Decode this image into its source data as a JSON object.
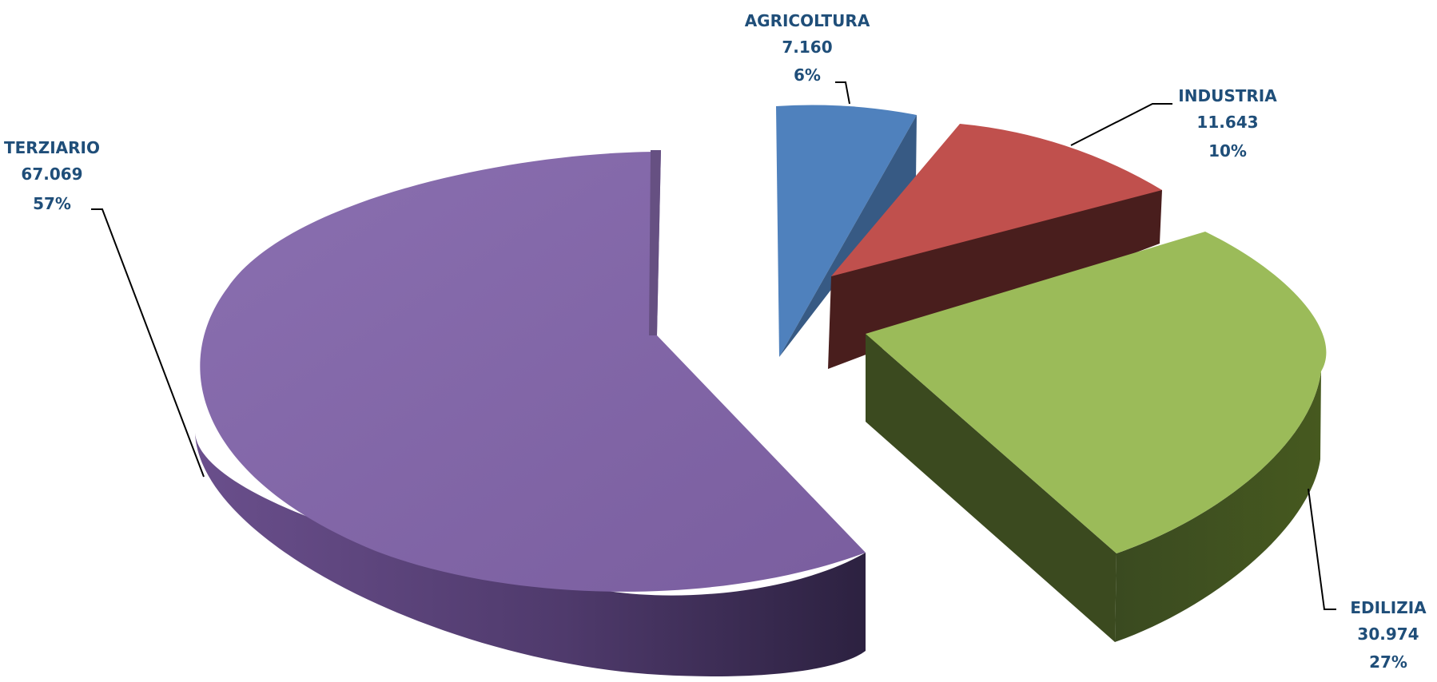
{
  "chart_data": {
    "type": "pie",
    "style": "3d-exploded",
    "slices": [
      {
        "name": "AGRICOLTURA",
        "value_text": "7.160",
        "value": 7160,
        "percent_text": "6%",
        "percent": 6,
        "color": "#4f81bd"
      },
      {
        "name": "INDUSTRIA",
        "value_text": "11.643",
        "value": 11643,
        "percent_text": "10%",
        "percent": 10,
        "color": "#c0504d"
      },
      {
        "name": "EDILIZIA",
        "value_text": "30.974",
        "value": 30974,
        "percent_text": "27%",
        "percent": 27,
        "color": "#9bbb59"
      },
      {
        "name": "TERZIARIO",
        "value_text": "67.069",
        "value": 67069,
        "percent_text": "57%",
        "percent": 57,
        "color": "#8064a2"
      }
    ],
    "title": "",
    "legend": "none"
  }
}
